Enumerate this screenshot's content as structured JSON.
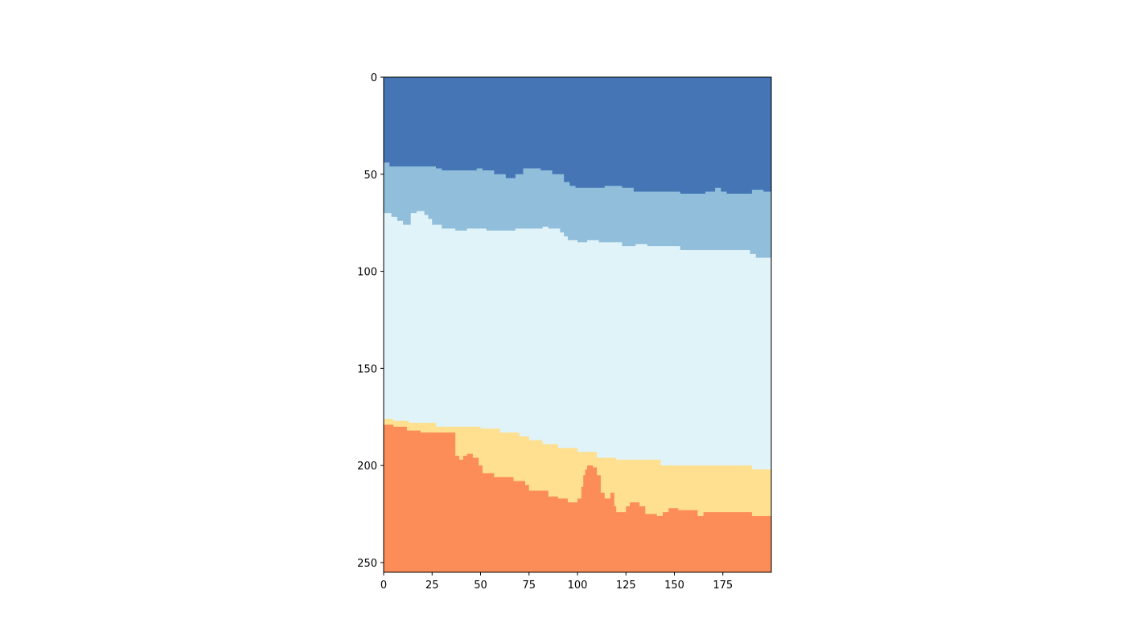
{
  "chart_data": {
    "type": "heatmap",
    "title": "",
    "xlabel": "",
    "ylabel": "",
    "xlim": [
      0,
      200
    ],
    "ylim": [
      255,
      0
    ],
    "y_axis_inverted": true,
    "grid": false,
    "legend": "none",
    "x_ticks": [
      0,
      25,
      50,
      75,
      100,
      125,
      150,
      175
    ],
    "y_ticks": [
      0,
      50,
      100,
      150,
      200,
      250
    ],
    "layers": [
      {
        "class": 1,
        "color": "#4575b4",
        "top_boundary": [
          [
            0,
            0
          ],
          [
            200,
            0
          ]
        ]
      },
      {
        "class": 2,
        "color": "#91bfdb",
        "top_boundary": [
          [
            0,
            44
          ],
          [
            3,
            44
          ],
          [
            3,
            46
          ],
          [
            27,
            46
          ],
          [
            27,
            47
          ],
          [
            30,
            47
          ],
          [
            30,
            48
          ],
          [
            48,
            48
          ],
          [
            48,
            47
          ],
          [
            51,
            47
          ],
          [
            51,
            48
          ],
          [
            57,
            48
          ],
          [
            57,
            50
          ],
          [
            63,
            50
          ],
          [
            63,
            52
          ],
          [
            68,
            52
          ],
          [
            68,
            50
          ],
          [
            72,
            50
          ],
          [
            72,
            47
          ],
          [
            81,
            47
          ],
          [
            81,
            48
          ],
          [
            87,
            48
          ],
          [
            87,
            50
          ],
          [
            93,
            50
          ],
          [
            93,
            54
          ],
          [
            96,
            54
          ],
          [
            96,
            56
          ],
          [
            99,
            56
          ],
          [
            99,
            57
          ],
          [
            114,
            57
          ],
          [
            114,
            56
          ],
          [
            123,
            56
          ],
          [
            123,
            57
          ],
          [
            129,
            57
          ],
          [
            129,
            59
          ],
          [
            153,
            59
          ],
          [
            153,
            60
          ],
          [
            166,
            60
          ],
          [
            166,
            59
          ],
          [
            171,
            59
          ],
          [
            171,
            57
          ],
          [
            174,
            57
          ],
          [
            174,
            59
          ],
          [
            177,
            59
          ],
          [
            177,
            60
          ],
          [
            190,
            60
          ],
          [
            190,
            58
          ],
          [
            196,
            58
          ],
          [
            196,
            59
          ],
          [
            200,
            59
          ]
        ]
      },
      {
        "class": 3,
        "color": "#e0f3f8",
        "top_boundary": [
          [
            0,
            70
          ],
          [
            4,
            70
          ],
          [
            4,
            72
          ],
          [
            7,
            72
          ],
          [
            7,
            74
          ],
          [
            10,
            74
          ],
          [
            10,
            76
          ],
          [
            14,
            76
          ],
          [
            14,
            70
          ],
          [
            17,
            70
          ],
          [
            17,
            69
          ],
          [
            21,
            69
          ],
          [
            21,
            71
          ],
          [
            23,
            71
          ],
          [
            23,
            73
          ],
          [
            25,
            73
          ],
          [
            25,
            76
          ],
          [
            30,
            76
          ],
          [
            30,
            78
          ],
          [
            37,
            78
          ],
          [
            37,
            79
          ],
          [
            43,
            79
          ],
          [
            43,
            78
          ],
          [
            53,
            78
          ],
          [
            53,
            79
          ],
          [
            68,
            79
          ],
          [
            68,
            78
          ],
          [
            82,
            78
          ],
          [
            82,
            77
          ],
          [
            85,
            77
          ],
          [
            85,
            78
          ],
          [
            91,
            78
          ],
          [
            91,
            80
          ],
          [
            93,
            80
          ],
          [
            93,
            82
          ],
          [
            95,
            82
          ],
          [
            95,
            84
          ],
          [
            100,
            84
          ],
          [
            100,
            85
          ],
          [
            105,
            85
          ],
          [
            105,
            84
          ],
          [
            111,
            84
          ],
          [
            111,
            85
          ],
          [
            123,
            85
          ],
          [
            123,
            87
          ],
          [
            130,
            87
          ],
          [
            130,
            86
          ],
          [
            136,
            86
          ],
          [
            136,
            87
          ],
          [
            153,
            87
          ],
          [
            153,
            89
          ],
          [
            189,
            89
          ],
          [
            189,
            91
          ],
          [
            192,
            91
          ],
          [
            192,
            93
          ],
          [
            200,
            93
          ]
        ]
      },
      {
        "class": 4,
        "color": "#fee090",
        "top_boundary": [
          [
            0,
            176
          ],
          [
            5,
            176
          ],
          [
            5,
            177
          ],
          [
            13,
            177
          ],
          [
            13,
            178
          ],
          [
            27,
            178
          ],
          [
            27,
            180
          ],
          [
            50,
            180
          ],
          [
            50,
            181
          ],
          [
            60,
            181
          ],
          [
            60,
            183
          ],
          [
            70,
            183
          ],
          [
            70,
            185
          ],
          [
            75,
            185
          ],
          [
            75,
            187
          ],
          [
            82,
            187
          ],
          [
            82,
            189
          ],
          [
            90,
            189
          ],
          [
            90,
            191
          ],
          [
            100,
            191
          ],
          [
            100,
            193
          ],
          [
            110,
            193
          ],
          [
            110,
            196
          ],
          [
            120,
            196
          ],
          [
            120,
            197
          ],
          [
            143,
            197
          ],
          [
            143,
            200
          ],
          [
            190,
            200
          ],
          [
            190,
            202
          ],
          [
            200,
            202
          ]
        ]
      },
      {
        "class": 5,
        "color": "#fc8d59",
        "top_boundary": [
          [
            0,
            179
          ],
          [
            5,
            179
          ],
          [
            5,
            180
          ],
          [
            12,
            180
          ],
          [
            12,
            182
          ],
          [
            19,
            182
          ],
          [
            19,
            183
          ],
          [
            37,
            183
          ],
          [
            37,
            195
          ],
          [
            39,
            195
          ],
          [
            39,
            197
          ],
          [
            41,
            197
          ],
          [
            41,
            195
          ],
          [
            43,
            195
          ],
          [
            43,
            194
          ],
          [
            46,
            194
          ],
          [
            46,
            196
          ],
          [
            49,
            196
          ],
          [
            49,
            200
          ],
          [
            51,
            200
          ],
          [
            51,
            204
          ],
          [
            57,
            204
          ],
          [
            57,
            206
          ],
          [
            67,
            206
          ],
          [
            67,
            208
          ],
          [
            73,
            208
          ],
          [
            73,
            210
          ],
          [
            75,
            210
          ],
          [
            75,
            213
          ],
          [
            85,
            213
          ],
          [
            85,
            216
          ],
          [
            90,
            216
          ],
          [
            90,
            217
          ],
          [
            95,
            217
          ],
          [
            95,
            219
          ],
          [
            100,
            219
          ],
          [
            100,
            217
          ],
          [
            102,
            217
          ],
          [
            102,
            211
          ],
          [
            103,
            211
          ],
          [
            103,
            205
          ],
          [
            104,
            205
          ],
          [
            104,
            202
          ],
          [
            105,
            202
          ],
          [
            105,
            200
          ],
          [
            108,
            200
          ],
          [
            108,
            201
          ],
          [
            110,
            201
          ],
          [
            110,
            205
          ],
          [
            112,
            205
          ],
          [
            112,
            214
          ],
          [
            114,
            214
          ],
          [
            114,
            217
          ],
          [
            117,
            217
          ],
          [
            117,
            214
          ],
          [
            119,
            214
          ],
          [
            119,
            221
          ],
          [
            120,
            221
          ],
          [
            120,
            224
          ],
          [
            125,
            224
          ],
          [
            125,
            221
          ],
          [
            127,
            221
          ],
          [
            127,
            219
          ],
          [
            132,
            219
          ],
          [
            132,
            221
          ],
          [
            135,
            221
          ],
          [
            135,
            225
          ],
          [
            141,
            225
          ],
          [
            141,
            226
          ],
          [
            144,
            226
          ],
          [
            144,
            224
          ],
          [
            147,
            224
          ],
          [
            147,
            222
          ],
          [
            152,
            222
          ],
          [
            152,
            223
          ],
          [
            162,
            223
          ],
          [
            162,
            226
          ],
          [
            165,
            226
          ],
          [
            165,
            224
          ],
          [
            190,
            224
          ],
          [
            190,
            226
          ],
          [
            200,
            226
          ]
        ]
      }
    ]
  }
}
